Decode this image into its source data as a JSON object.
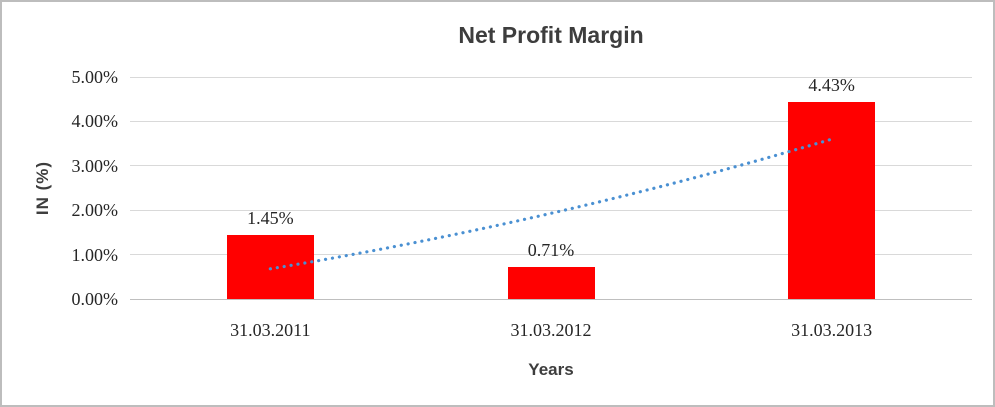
{
  "chart_data": {
    "type": "bar",
    "title": "Net Profit Margin",
    "xlabel": "Years",
    "ylabel": "IN (%)",
    "categories": [
      "31.03.2011",
      "31.03.2012",
      "31.03.2013"
    ],
    "values": [
      1.45,
      0.71,
      4.43
    ],
    "value_labels": [
      "1.45%",
      "0.71%",
      "4.43%"
    ],
    "ylim": [
      0,
      5
    ],
    "yticks": [
      0,
      1,
      2,
      3,
      4,
      5
    ],
    "ytick_labels": [
      "0.00%",
      "1.00%",
      "2.00%",
      "3.00%",
      "4.00%",
      "5.00%"
    ],
    "grid": true,
    "legend": "none",
    "bar_color": "#FF0000",
    "trendline": {
      "style": "dotted",
      "color": "#4A90D2",
      "points": [
        [
          0,
          0.68
        ],
        [
          1,
          1.93
        ],
        [
          2,
          3.6
        ]
      ]
    }
  }
}
